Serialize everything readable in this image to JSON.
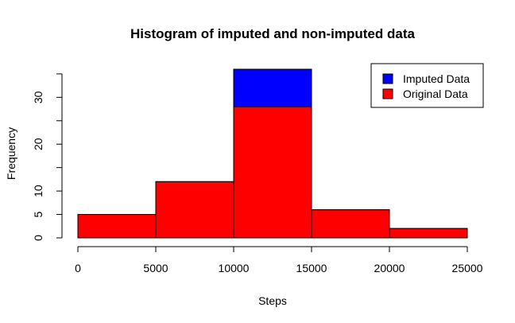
{
  "chart_data": {
    "type": "bar",
    "subtype": "stacked-histogram",
    "title": "Histogram of imputed and non-imputed data",
    "xlabel": "Steps",
    "ylabel": "Frequency",
    "bins": [
      [
        0,
        5000
      ],
      [
        5000,
        10000
      ],
      [
        10000,
        15000
      ],
      [
        15000,
        20000
      ],
      [
        20000,
        25000
      ]
    ],
    "series": [
      {
        "name": "Original Data",
        "color": "#FF0000",
        "values": [
          5,
          12,
          28,
          6,
          2
        ]
      },
      {
        "name": "Imputed Data",
        "color": "#0000FF",
        "values": [
          5,
          12,
          36,
          6,
          2
        ]
      }
    ],
    "xlim": [
      0,
      25000
    ],
    "ylim": [
      0,
      36
    ],
    "x_ticks": [
      0,
      5000,
      10000,
      15000,
      20000,
      25000
    ],
    "x_tick_labels": [
      "0",
      "5000",
      "10000",
      "15000",
      "20000",
      "25000"
    ],
    "y_ticks": [
      0,
      5,
      10,
      20,
      30
    ],
    "y_tick_labels": [
      "0",
      "5",
      "10",
      "20",
      "30"
    ],
    "y_minor_ticks": [
      15,
      25,
      35
    ],
    "grid": false,
    "legend": {
      "position": "top-right",
      "entries": [
        {
          "label": "Imputed Data",
          "color": "#0000FF"
        },
        {
          "label": "Original Data",
          "color": "#FF0000"
        }
      ]
    }
  }
}
